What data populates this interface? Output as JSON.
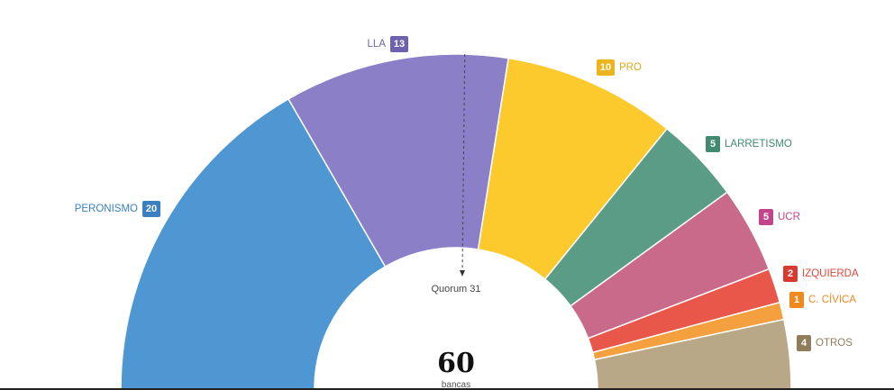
{
  "chart_data": {
    "type": "pie",
    "series": [
      {
        "name": "PERONISMO",
        "value": 20,
        "color": "#4e97d3"
      },
      {
        "name": "LLA",
        "value": 13,
        "color": "#8b7fc8"
      },
      {
        "name": "PRO",
        "value": 10,
        "color": "#fcca2c"
      },
      {
        "name": "LARRETISMO",
        "value": 5,
        "color": "#5a9c85"
      },
      {
        "name": "UCR",
        "value": 5,
        "color": "#c96a8a"
      },
      {
        "name": "IZQUIERDA",
        "value": 2,
        "color": "#e8574a"
      },
      {
        "name": "C. CÍVICA",
        "value": 1,
        "color": "#f4a03e"
      },
      {
        "name": "OTROS",
        "value": 4,
        "color": "#b9a888"
      }
    ],
    "quorum": {
      "value": 31,
      "label": "Quorum 31"
    },
    "total": {
      "value": "60",
      "label": "bancas"
    }
  },
  "colors": {
    "label_colors": {
      "PERONISMO": "#3a7fc0",
      "LLA": "#6e62b0",
      "PRO": "#e0a817",
      "LARRETISMO": "#3f8a70",
      "UCR": "#c2458c",
      "IZQUIERDA": "#e0463a",
      "C. CÍVICA": "#ef8a1e",
      "OTROS": "#8f7d5b"
    },
    "badge_colors": {
      "PERONISMO": "#3a7fc0",
      "LLA": "#6e62b0",
      "PRO": "#ecb51f",
      "LARRETISMO": "#3f8a70",
      "UCR": "#c2458c",
      "IZQUIERDA": "#d93a30",
      "C. CÍVICA": "#ef8a1e",
      "OTROS": "#8f7d5b"
    }
  }
}
